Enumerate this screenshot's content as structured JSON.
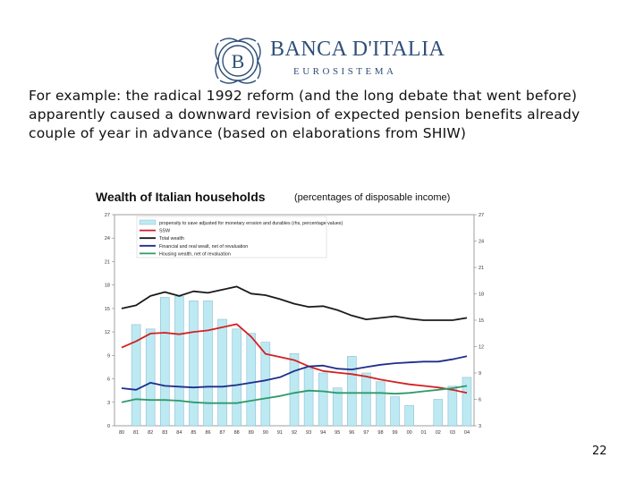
{
  "logo": {
    "name": "BANCA D'ITALIA",
    "tagline": "EUROSISTEMA",
    "monogram": "B"
  },
  "body_text": "For example: the radical 1992 reform (and the long debate that went before) apparently caused a downward revision of expected pension benefits already  couple of year in advance (based on elaborations from SHIW)",
  "chart_title": "Wealth of Italian households",
  "chart_subtitle": "(percentages of disposable income)",
  "page_number": "22",
  "chart_data": {
    "type": "bar",
    "categories": [
      "80",
      "81",
      "82",
      "83",
      "84",
      "85",
      "86",
      "87",
      "88",
      "89",
      "90",
      "91",
      "92",
      "93",
      "94",
      "95",
      "96",
      "97",
      "98",
      "99",
      "00",
      "01",
      "02",
      "03",
      "04"
    ],
    "ylim_left": [
      0,
      27
    ],
    "left_ticks": [
      "0",
      "3",
      "6",
      "9",
      "12",
      "15",
      "18",
      "21",
      "24",
      "27"
    ],
    "ylim_right": [
      3,
      27
    ],
    "right_ticks": [
      "3",
      "6",
      "9",
      "12",
      "15",
      "18",
      "21",
      "24",
      "27"
    ],
    "legend_position": "top-left",
    "series": [
      {
        "name": "propensity to save adjusted for monetary erosion and durables (rhs, percentage values)",
        "kind": "bar",
        "axis": "right",
        "color": "#bde9f3",
        "values": [
          null,
          14.5,
          14.0,
          17.6,
          17.7,
          17.2,
          17.2,
          15.1,
          14.0,
          13.5,
          12.5,
          null,
          11.2,
          9.5,
          9.0,
          7.3,
          10.9,
          9.0,
          8.0,
          6.3,
          5.3,
          null,
          6.0,
          7.5,
          8.5
        ]
      },
      {
        "name": "SSW",
        "kind": "line",
        "axis": "left",
        "color": "#d42020",
        "values": [
          10.0,
          10.8,
          11.8,
          11.9,
          11.7,
          12.0,
          12.2,
          12.6,
          13.0,
          11.4,
          9.2,
          8.8,
          8.4,
          7.6,
          7.0,
          6.8,
          6.6,
          6.3,
          5.9,
          5.6,
          5.3,
          5.1,
          4.9,
          4.6,
          4.2
        ]
      },
      {
        "name": "Total wealth",
        "kind": "line",
        "axis": "left",
        "color": "#1a1a1a",
        "values": [
          15.0,
          15.4,
          16.6,
          17.1,
          16.6,
          17.2,
          17.0,
          17.4,
          17.8,
          16.9,
          16.7,
          16.2,
          15.6,
          15.2,
          15.3,
          14.8,
          14.1,
          13.6,
          13.8,
          14.0,
          13.7,
          13.5,
          13.5,
          13.5,
          13.8
        ]
      },
      {
        "name": "Financial and real wealt, net of revaluation",
        "kind": "line",
        "axis": "left",
        "color": "#1f2e8a",
        "values": [
          4.8,
          4.6,
          5.5,
          5.1,
          5.0,
          4.9,
          5.0,
          5.0,
          5.2,
          5.5,
          5.8,
          6.2,
          7.0,
          7.6,
          7.7,
          7.3,
          7.2,
          7.5,
          7.8,
          8.0,
          8.1,
          8.2,
          8.2,
          8.5,
          8.9
        ]
      },
      {
        "name": "Housing wealth, net of revaluation",
        "kind": "line",
        "axis": "left",
        "color": "#2e9a6a",
        "values": [
          3.0,
          3.4,
          3.3,
          3.3,
          3.2,
          3.0,
          2.9,
          2.9,
          2.9,
          3.2,
          3.5,
          3.8,
          4.2,
          4.5,
          4.4,
          4.2,
          4.2,
          4.2,
          4.2,
          4.1,
          4.2,
          4.4,
          4.6,
          4.8,
          5.1
        ]
      }
    ]
  }
}
